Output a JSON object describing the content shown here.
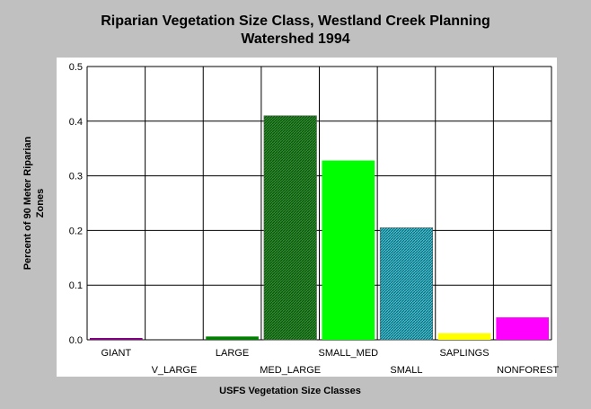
{
  "chart_data": {
    "type": "bar",
    "title_line1": "Riparian Vegetation Size Class, Westland Creek Planning",
    "title_line2": "Watershed 1994",
    "xlabel": "USFS Vegetation Size Classes",
    "ylabel_line1": "Percent of 90 Meter Riparian",
    "ylabel_line2": "Zones",
    "ylim": [
      0,
      0.5
    ],
    "yticks": [
      "0.0",
      "0.1",
      "0.2",
      "0.3",
      "0.4",
      "0.5"
    ],
    "grid": true,
    "categories": [
      "GIANT",
      "V_LARGE",
      "LARGE",
      "MED_LARGE",
      "SMALL_MED",
      "SMALL",
      "SAPLINGS",
      "NONFOREST"
    ],
    "values": [
      0.002,
      0.0,
      0.006,
      0.41,
      0.328,
      0.205,
      0.012,
      0.041
    ],
    "colors": [
      "#800080",
      "#808080",
      "#008000",
      "#2e8b2e",
      "#00ff00",
      "#20b2aa",
      "#ffff00",
      "#ff00ff"
    ],
    "hatched": [
      false,
      false,
      false,
      true,
      false,
      true,
      false,
      false
    ]
  }
}
